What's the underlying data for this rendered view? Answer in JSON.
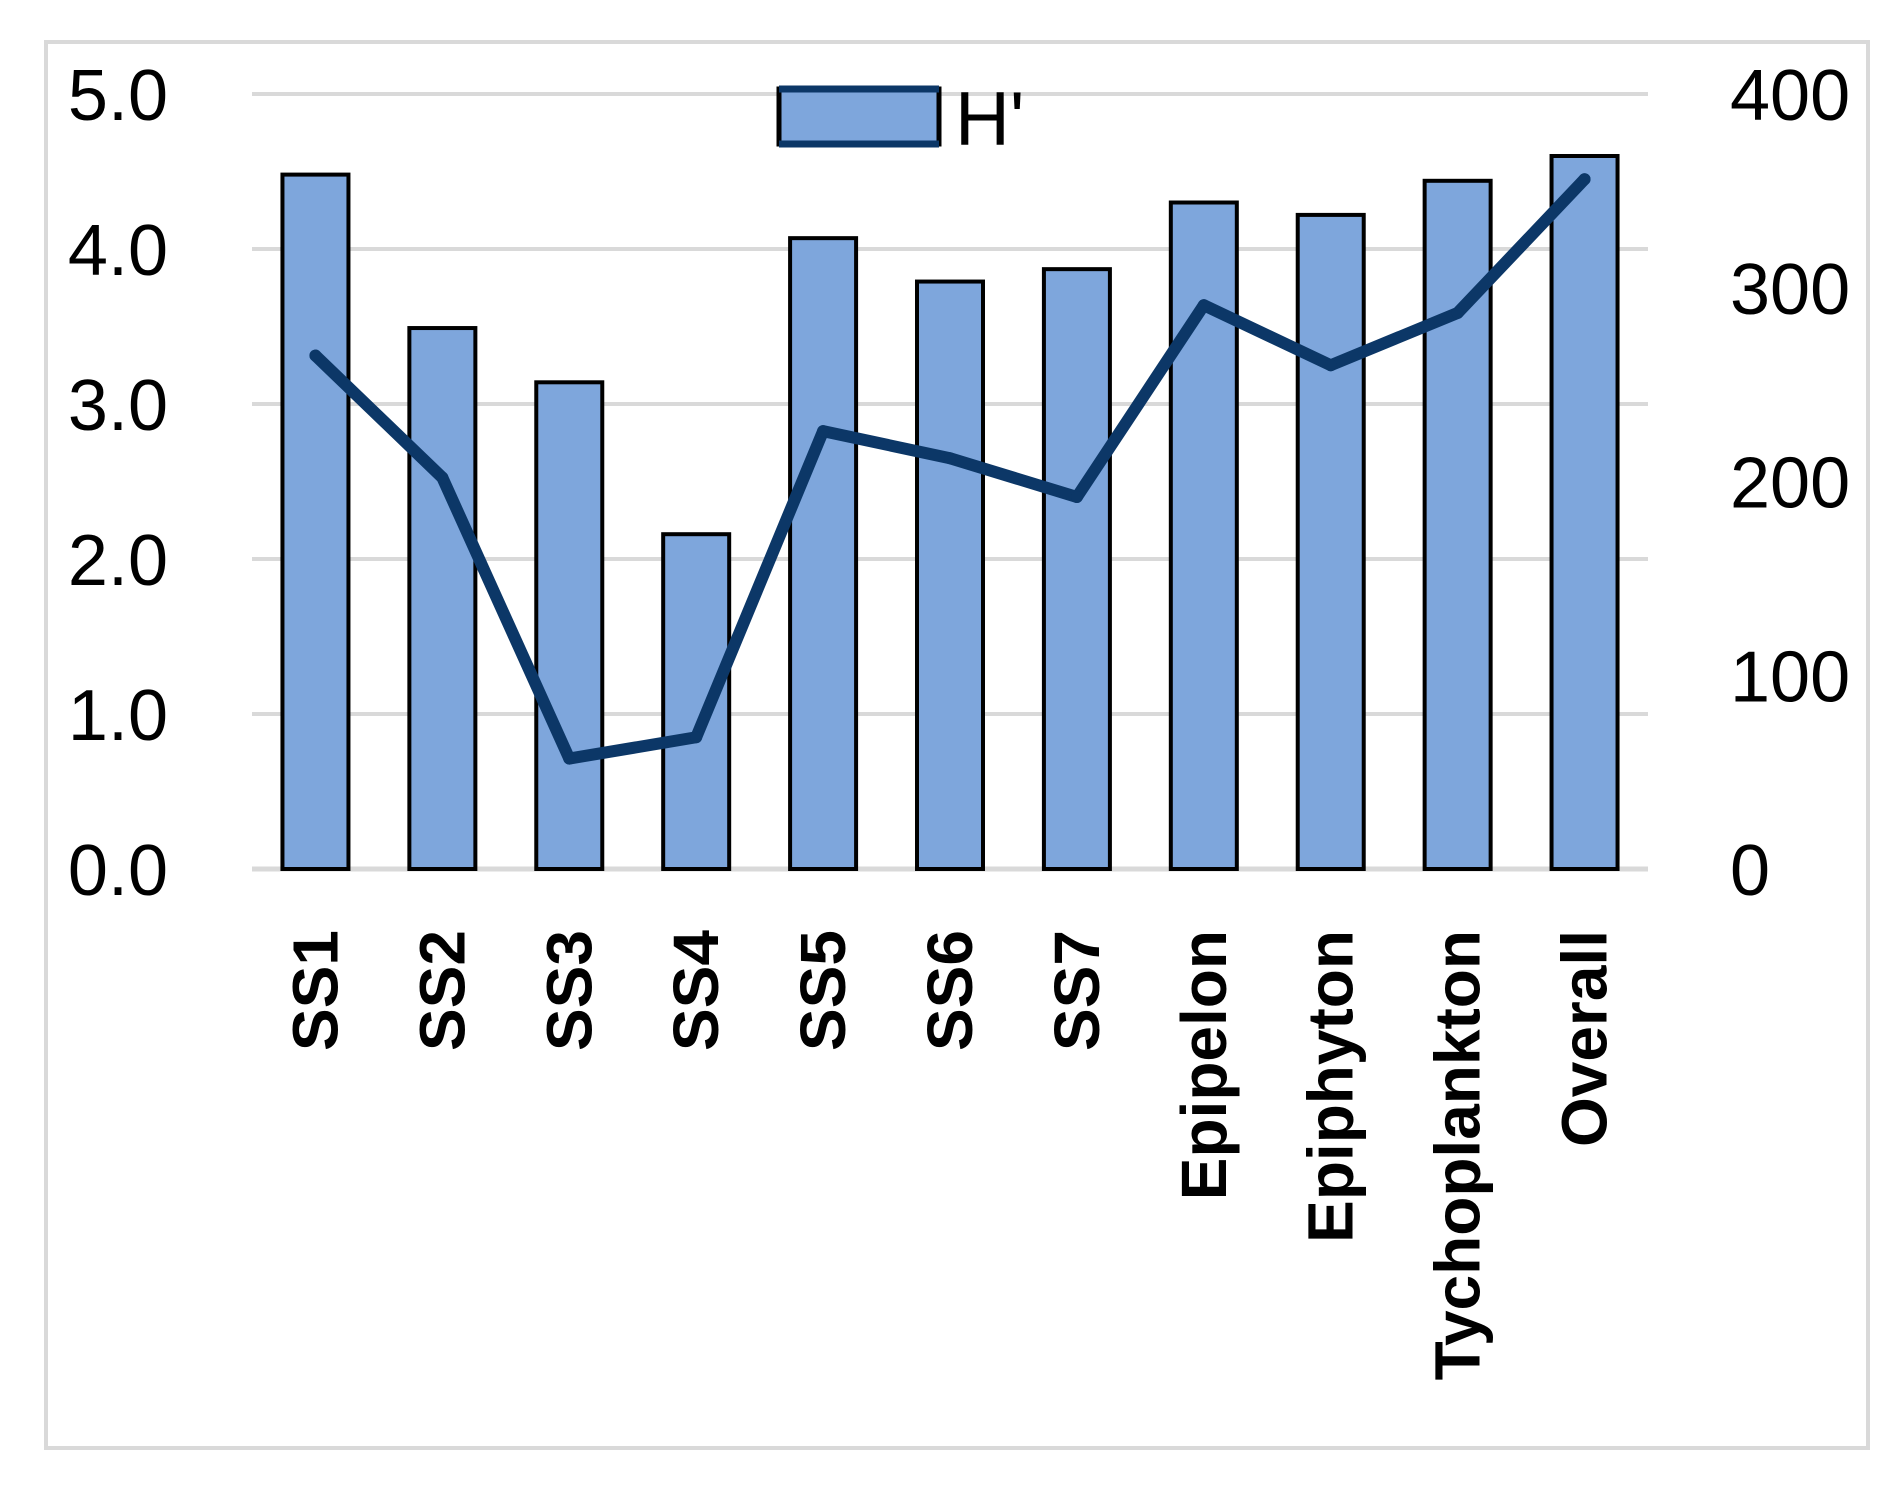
{
  "chart_data": {
    "type": "bar",
    "categories": [
      "SS1",
      "SS2",
      "SS3",
      "SS4",
      "SS5",
      "SS6",
      "SS7",
      "Epipelon",
      "Epiphyton",
      "Tychoplankton",
      "Overall"
    ],
    "series": [
      {
        "name": "H'",
        "type": "bar",
        "axis": "left",
        "values": [
          4.48,
          3.49,
          3.14,
          2.16,
          4.07,
          3.79,
          3.87,
          4.3,
          4.22,
          4.44,
          4.6
        ]
      },
      {
        "type": "line",
        "axis": "right",
        "values": [
          265,
          202,
          57,
          68,
          226,
          212,
          192,
          291,
          260,
          287,
          356
        ]
      }
    ],
    "left_axis": {
      "ylim": [
        0,
        5
      ],
      "ticks": [
        "0.0",
        "1.0",
        "2.0",
        "3.0",
        "4.0",
        "5.0"
      ]
    },
    "right_axis": {
      "ylim": [
        0,
        400
      ],
      "ticks": [
        "0",
        "100",
        "200",
        "300",
        "400"
      ]
    },
    "grid": true,
    "legend_position": "top-center",
    "colors": {
      "bar_fill": "#7ea6dc",
      "bar_stroke": "#000000",
      "line": "#0c3767",
      "grid": "#d9d9d9",
      "frame": "#d9d9d9"
    }
  }
}
